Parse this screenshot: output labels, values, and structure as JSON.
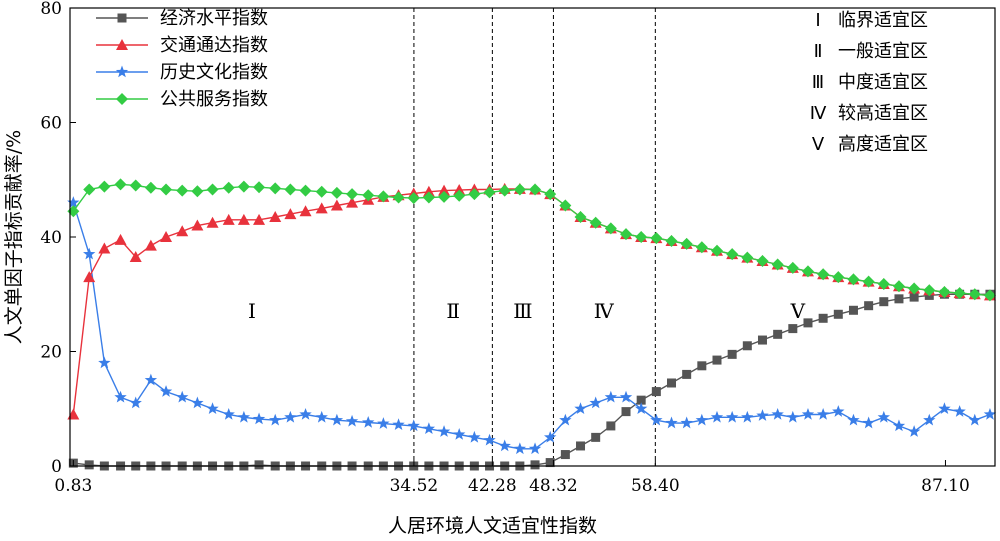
{
  "chart_data": {
    "type": "line",
    "xlabel": "人居环境人文适宜性指数",
    "ylabel": "人文单因子指标贡献率/%",
    "ylim": [
      0,
      80
    ],
    "yticks": [
      0,
      20,
      40,
      60,
      80
    ],
    "xlim": [
      0.5,
      92
    ],
    "xticks": [
      0.83,
      34.52,
      42.28,
      48.32,
      58.4,
      87.1
    ],
    "xtick_labels": [
      "0.83",
      "34.52",
      "42.28",
      "48.32",
      "58.40",
      "87.10"
    ],
    "zone_boundaries": [
      34.52,
      42.28,
      48.32,
      58.4
    ],
    "zones": [
      {
        "numeral": "Ⅰ",
        "x": 18.5
      },
      {
        "numeral": "Ⅱ",
        "x": 38.4
      },
      {
        "numeral": "Ⅲ",
        "x": 45.3
      },
      {
        "numeral": "Ⅳ",
        "x": 53.3
      },
      {
        "numeral": "Ⅴ",
        "x": 72.5
      }
    ],
    "zone_legend": [
      {
        "numeral": "Ⅰ",
        "label": "临界适宜区"
      },
      {
        "numeral": "Ⅱ",
        "label": "一般适宜区"
      },
      {
        "numeral": "Ⅲ",
        "label": "中度适宜区"
      },
      {
        "numeral": "Ⅳ",
        "label": "较高适宜区"
      },
      {
        "numeral": "Ⅴ",
        "label": "高度适宜区"
      }
    ],
    "legend_position": "top-left",
    "grid": false,
    "x": [
      0.83,
      2.4,
      3.9,
      5.5,
      7.0,
      8.5,
      10.0,
      11.6,
      13.1,
      14.6,
      16.2,
      17.7,
      19.2,
      20.8,
      22.3,
      23.8,
      25.4,
      26.9,
      28.4,
      30.0,
      31.5,
      33.0,
      34.5,
      36.0,
      37.5,
      39.0,
      40.5,
      42.0,
      43.5,
      45.0,
      46.5,
      48.0,
      49.5,
      51.0,
      52.5,
      54.0,
      55.5,
      57.0,
      58.5,
      60.0,
      61.5,
      63.0,
      64.5,
      66.0,
      67.5,
      69.0,
      70.5,
      72.0,
      73.5,
      75.0,
      76.5,
      78.0,
      79.5,
      81.0,
      82.5,
      84.0,
      85.5,
      87.0,
      88.5,
      90.0,
      91.5
    ],
    "series": [
      {
        "name": "经济水平指数",
        "color": "#555555",
        "marker": "square",
        "values": [
          0.5,
          0.2,
          0,
          0,
          0,
          0,
          0,
          0,
          0,
          0,
          0,
          0,
          0.2,
          0,
          0,
          0,
          0,
          0,
          0,
          0,
          0,
          0,
          0,
          0,
          0,
          0,
          0,
          0,
          0,
          0,
          0.2,
          0.6,
          2,
          3.5,
          5,
          7,
          9.5,
          11.5,
          13,
          14.5,
          16,
          17.5,
          18.5,
          19.5,
          21,
          22,
          23,
          24,
          25,
          25.8,
          26.5,
          27.2,
          28,
          28.7,
          29.2,
          29.5,
          29.8,
          30,
          30,
          30,
          30
        ]
      },
      {
        "name": "交通通达指数",
        "color": "#e8323c",
        "marker": "triangle",
        "values": [
          9,
          33,
          38,
          39.5,
          36.5,
          38.5,
          40,
          41,
          42,
          42.5,
          43,
          43,
          43,
          43.5,
          44,
          44.5,
          45,
          45.5,
          46,
          46.5,
          47,
          47.3,
          47.6,
          47.9,
          48.1,
          48.2,
          48.3,
          48.3,
          48.4,
          48.4,
          48.3,
          47.5,
          45.5,
          43.5,
          42.5,
          41.5,
          40.5,
          40,
          39.8,
          39.3,
          38.8,
          38.2,
          37.6,
          37,
          36.4,
          35.8,
          35.2,
          34.6,
          34,
          33.5,
          33,
          32.6,
          32.2,
          31.8,
          31.4,
          31,
          30.7,
          30.4,
          30.2,
          30,
          29.8
        ]
      },
      {
        "name": "历史文化指数",
        "color": "#3a7ee8",
        "marker": "star",
        "values": [
          46,
          37,
          18,
          12,
          11,
          15,
          13,
          12,
          11,
          10,
          9,
          8.5,
          8.2,
          8,
          8.5,
          9,
          8.5,
          8,
          7.8,
          7.6,
          7.4,
          7.2,
          7,
          6.5,
          6,
          5.5,
          5,
          4.5,
          3.5,
          3,
          3,
          5,
          8,
          10,
          11,
          12,
          12,
          10,
          8,
          7.5,
          7.5,
          8,
          8.5,
          8.5,
          8.5,
          8.8,
          9,
          8.5,
          9,
          9,
          9.5,
          8,
          7.5,
          8.5,
          7,
          6,
          8,
          10,
          9.5,
          8,
          9
        ]
      },
      {
        "name": "公共服务指数",
        "color": "#33cc44",
        "marker": "diamond",
        "values": [
          44.5,
          48.3,
          48.8,
          49.2,
          49,
          48.6,
          48.3,
          48.1,
          48,
          48.3,
          48.6,
          48.8,
          48.7,
          48.5,
          48.3,
          48.1,
          47.9,
          47.7,
          47.5,
          47.3,
          47.1,
          46.9,
          46.8,
          46.9,
          47,
          47.2,
          47.5,
          47.8,
          48.1,
          48.3,
          48.3,
          47.5,
          45.5,
          43.5,
          42.5,
          41.5,
          40.5,
          40,
          39.8,
          39.3,
          38.8,
          38.2,
          37.6,
          37,
          36.4,
          35.8,
          35.2,
          34.6,
          34,
          33.5,
          33,
          32.6,
          32.2,
          31.8,
          31.4,
          31,
          30.7,
          30.4,
          30.2,
          30,
          29.8
        ]
      }
    ]
  }
}
